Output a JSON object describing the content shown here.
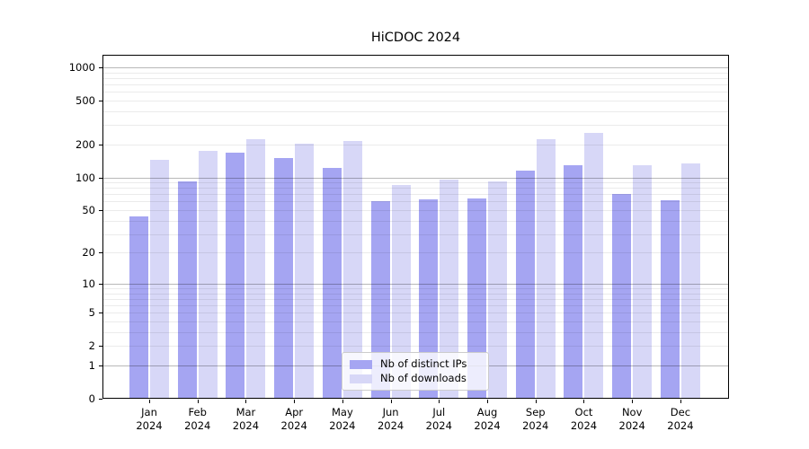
{
  "chart_data": {
    "type": "bar",
    "title": "HiCDOC 2024",
    "categories": [
      "Jan",
      "Feb",
      "Mar",
      "Apr",
      "May",
      "Jun",
      "Jul",
      "Aug",
      "Sep",
      "Oct",
      "Nov",
      "Dec"
    ],
    "year_label": "2024",
    "series": [
      {
        "name": "Nb of distinct IPs",
        "color": "#a5a5f2",
        "values": [
          44,
          92,
          167,
          150,
          121,
          60,
          63,
          64,
          116,
          128,
          70,
          62
        ]
      },
      {
        "name": "Nb of downloads",
        "color": "#d7d7f7",
        "values": [
          144,
          176,
          222,
          204,
          213,
          85,
          95,
          92,
          222,
          253,
          130,
          133
        ]
      }
    ],
    "xlabel": "",
    "ylabel": "",
    "yscale": "log(1+x)",
    "ylim": [
      0,
      1300
    ],
    "yticks": [
      0,
      1,
      2,
      5,
      10,
      20,
      50,
      100,
      200,
      500,
      1000
    ],
    "major_gridlines": [
      1,
      10,
      100,
      1000
    ],
    "minor_gridlines": [
      2,
      3,
      4,
      5,
      6,
      7,
      8,
      9,
      20,
      30,
      40,
      50,
      60,
      70,
      80,
      90,
      200,
      300,
      400,
      500,
      600,
      700,
      800,
      900
    ],
    "grid": "on",
    "legend_position": "inside-bottom-center"
  }
}
